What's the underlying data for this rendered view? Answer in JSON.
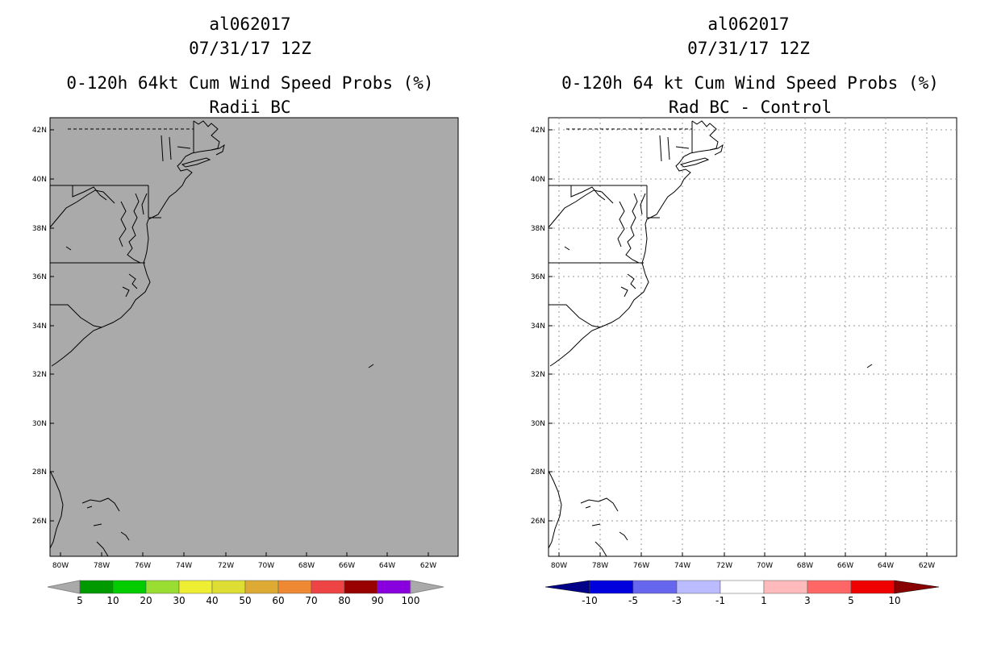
{
  "panels": [
    {
      "storm_id": "al062017",
      "datetime": "07/31/17 12Z",
      "title": "0-120h 64kt Cum Wind Speed Probs (%)",
      "subtitle": "Radii BC",
      "background": "#aaaaaa",
      "grid": false,
      "colorbar": {
        "colors": [
          "#009900",
          "#00cc00",
          "#99dd33",
          "#eeee33",
          "#dddd33",
          "#ddaa33",
          "#ee8833",
          "#ee4444",
          "#990000",
          "#8800dd"
        ],
        "end_color": "#aaaaaa",
        "labels": [
          "5",
          "10",
          "20",
          "30",
          "40",
          "50",
          "60",
          "70",
          "80",
          "90",
          "100"
        ]
      }
    },
    {
      "storm_id": "al062017",
      "datetime": "07/31/17 12Z",
      "title": "0-120h 64 kt Cum Wind Speed Probs (%)",
      "subtitle": "Rad BC - Control",
      "background": "#ffffff",
      "grid": true,
      "colorbar": {
        "colors": [
          "#0000dd",
          "#6666ee",
          "#bbbbff",
          "#ffffff",
          "#ffbbbb",
          "#ff6666",
          "#ee0000"
        ],
        "left_end_color": "#000088",
        "right_end_color": "#880000",
        "labels": [
          "-10",
          "-5",
          "-3",
          "-1",
          "1",
          "3",
          "5",
          "10"
        ]
      }
    }
  ],
  "axes": {
    "lat_labels": [
      "42N",
      "40N",
      "38N",
      "36N",
      "34N",
      "32N",
      "30N",
      "28N",
      "26N"
    ],
    "lon_labels": [
      "80W",
      "78W",
      "76W",
      "74W",
      "72W",
      "70W",
      "68W",
      "66W",
      "64W",
      "62W"
    ]
  }
}
